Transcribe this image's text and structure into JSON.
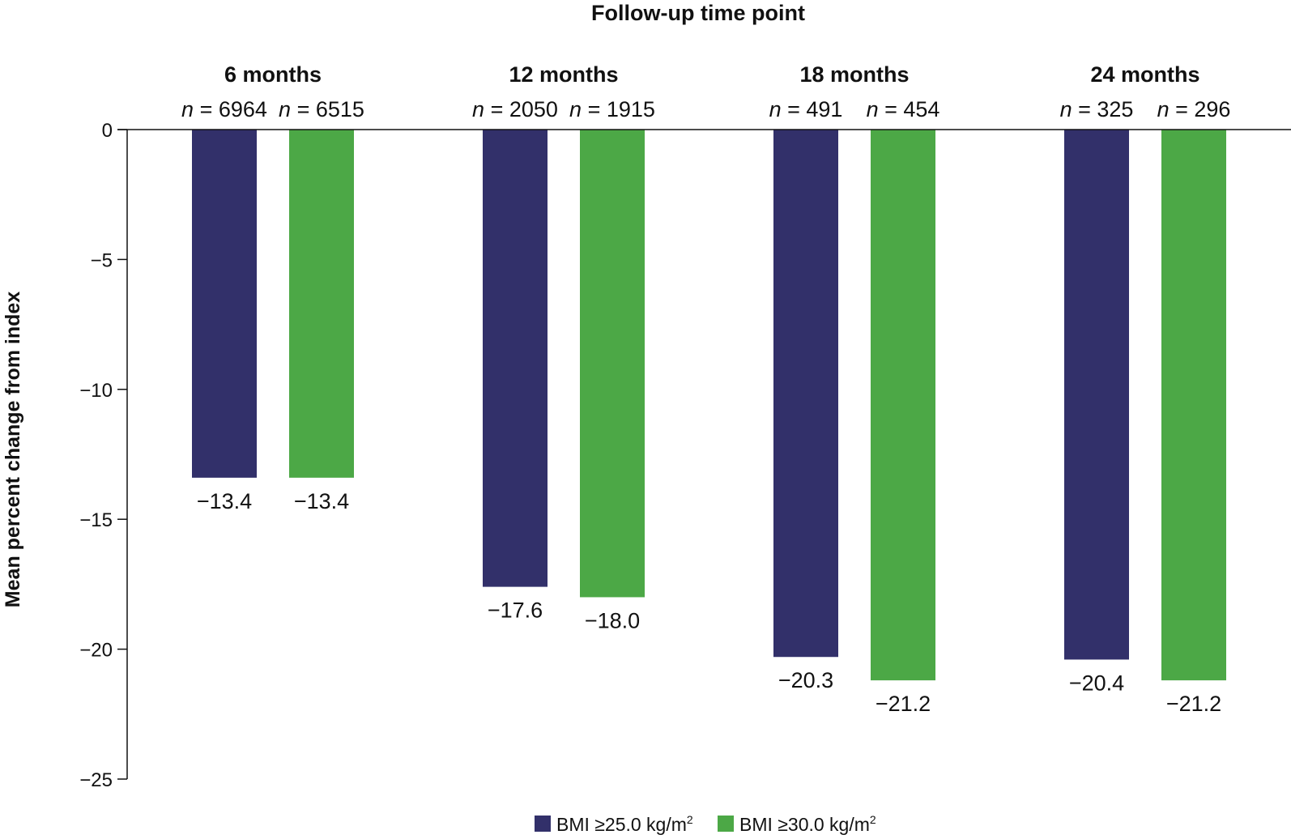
{
  "chart_data": {
    "type": "bar",
    "top_axis_title": "Follow-up time point",
    "ylabel": "Mean percent change from index",
    "ylim": [
      -25,
      0
    ],
    "yticks": [
      0,
      -5,
      -10,
      -15,
      -20,
      -25
    ],
    "ytick_labels": [
      "0",
      "−5",
      "−10",
      "−15",
      "−20",
      "−25"
    ],
    "categories": [
      "6 months",
      "12 months",
      "18 months",
      "24 months"
    ],
    "series": [
      {
        "name_main": "BMI ≥25.0 kg/m",
        "name_sup": "2",
        "color": "#32306a",
        "values": [
          -13.4,
          -17.6,
          -20.3,
          -20.4
        ],
        "value_labels": [
          "−13.4",
          "−17.6",
          "−20.3",
          "−20.4"
        ],
        "n_labels": [
          "6964",
          "2050",
          "491",
          "325"
        ]
      },
      {
        "name_main": "BMI ≥30.0 kg/m",
        "name_sup": "2",
        "color": "#4ca846",
        "values": [
          -13.4,
          -18.0,
          -21.2,
          -21.2
        ],
        "value_labels": [
          "−13.4",
          "−18.0",
          "−21.2",
          "−21.2"
        ],
        "n_labels": [
          "6515",
          "1915",
          "454",
          "296"
        ]
      }
    ],
    "n_prefix": "n",
    "n_equals": " = ",
    "grid": false,
    "legend_position": "bottom-center"
  }
}
